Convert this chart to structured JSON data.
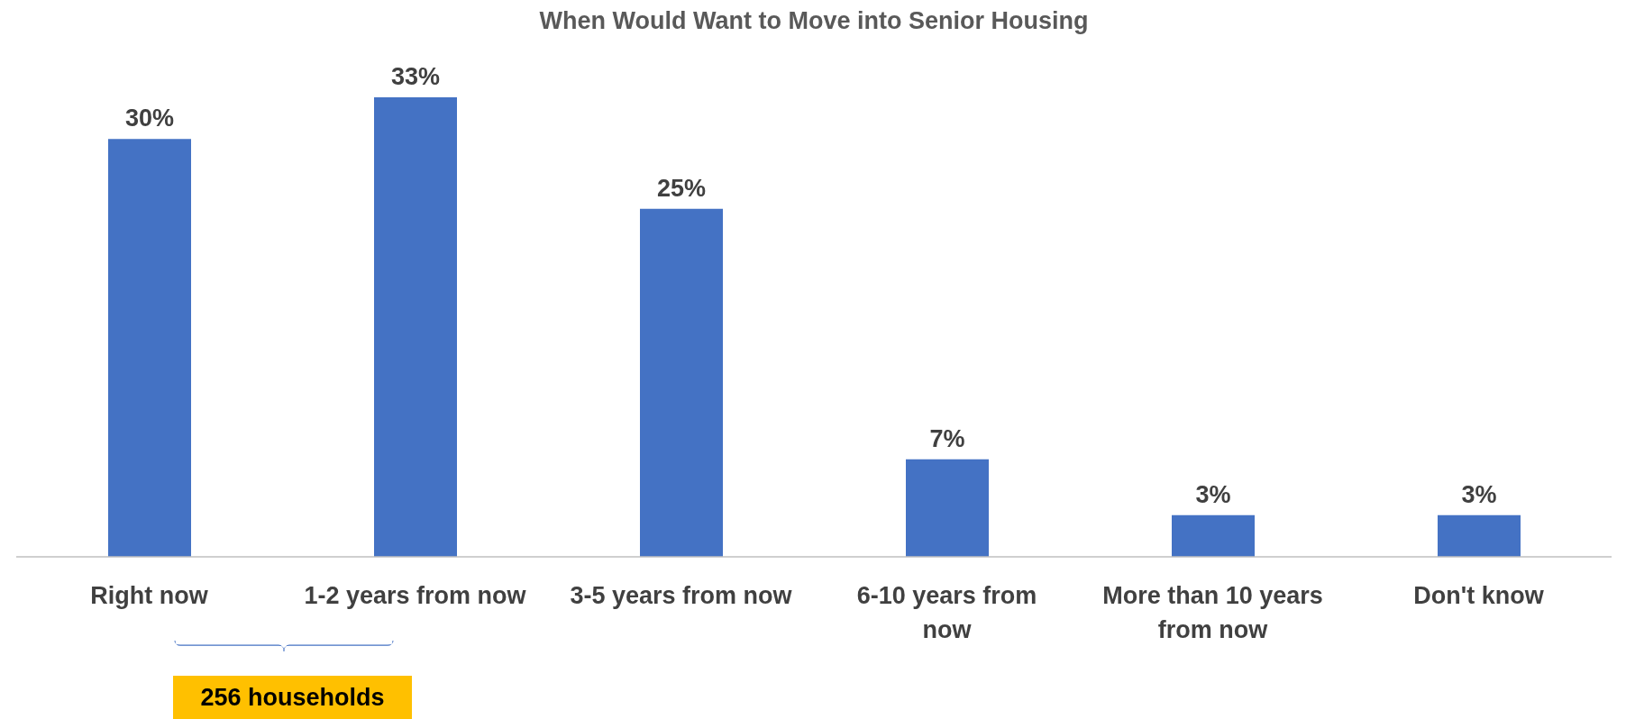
{
  "chart_data": {
    "type": "bar",
    "title": "When Would Want to Move into Senior Housing",
    "categories": [
      "Right now",
      "1-2 years from now",
      "3-5 years from now",
      "6-10 years from now",
      "More than 10 years from now",
      "Don't know"
    ],
    "values": [
      30,
      33,
      25,
      7,
      3,
      3
    ],
    "color": "#4472c4",
    "data_labels": true,
    "value_labels": [
      "30%",
      "33%",
      "25%",
      "7%",
      "3%",
      "3%"
    ],
    "annotations": [
      "256 households"
    ]
  }
}
